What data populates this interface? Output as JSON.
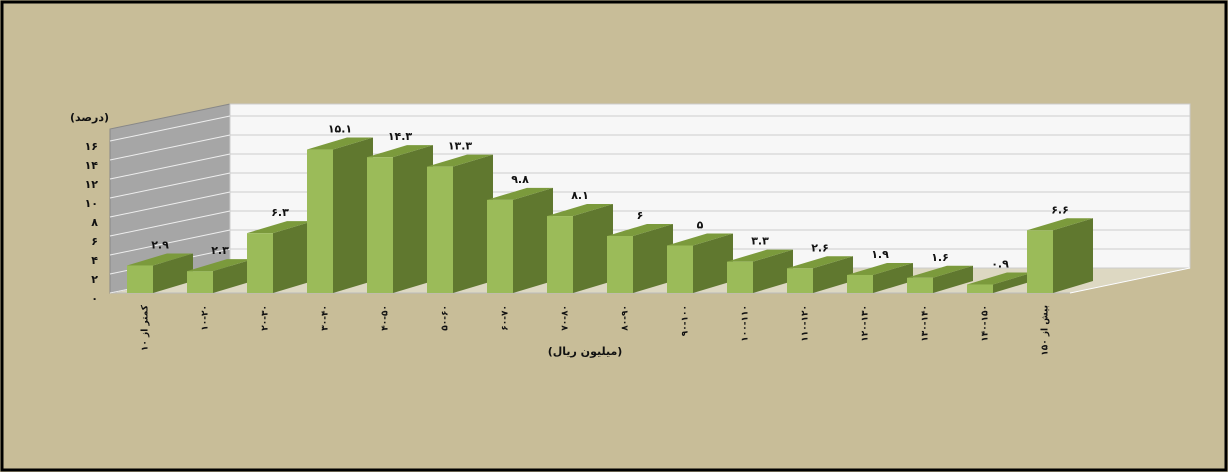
{
  "chart_data": {
    "type": "bar3d",
    "y_label": "(درصد)",
    "x_label": "(میلیون ریال)",
    "categories": [
      "کمتر از ۱۰",
      "۱۰-۲۰",
      "۲۰-۳۰",
      "۳۰-۴۰",
      "۴۰-۵۰",
      "۵۰-۶۰",
      "۶۰-۷۰",
      "۷۰-۸۰",
      "۸۰-۹۰",
      "۹۰-۱۰۰",
      "۱۰۰-۱۱۰",
      "۱۱۰-۱۲۰",
      "۱۲۰-۱۳۰",
      "۱۳۰-۱۴۰",
      "۱۴۰-۱۵۰",
      "بیش از ۱۵۰"
    ],
    "values": [
      2.9,
      2.3,
      6.3,
      15.1,
      14.3,
      13.3,
      9.8,
      8.1,
      6,
      5,
      3.3,
      2.6,
      1.9,
      1.6,
      0.9,
      6.6
    ],
    "value_labels": [
      "۲.۹",
      "۲.۳",
      "۶.۳",
      "۱۵.۱",
      "۱۴.۳",
      "۱۳.۳",
      "۹.۸",
      "۸.۱",
      "۶",
      "۵",
      "۳.۳",
      "۲.۶",
      "۱.۹",
      "۱.۶",
      "۰.۹",
      "۶.۶"
    ],
    "color": "#9bbb59",
    "ylim": [
      0,
      16
    ],
    "yticks": [
      {
        "value": 0,
        "label": "۰"
      },
      {
        "value": 2,
        "label": "۲"
      },
      {
        "value": 4,
        "label": "۴"
      },
      {
        "value": 6,
        "label": "۶"
      },
      {
        "value": 8,
        "label": "۸"
      },
      {
        "value": 10,
        "label": "۱۰"
      },
      {
        "value": 12,
        "label": "۱۲"
      },
      {
        "value": 14,
        "label": "۱۴"
      },
      {
        "value": 16,
        "label": "۱۶"
      }
    ],
    "grid": true
  }
}
